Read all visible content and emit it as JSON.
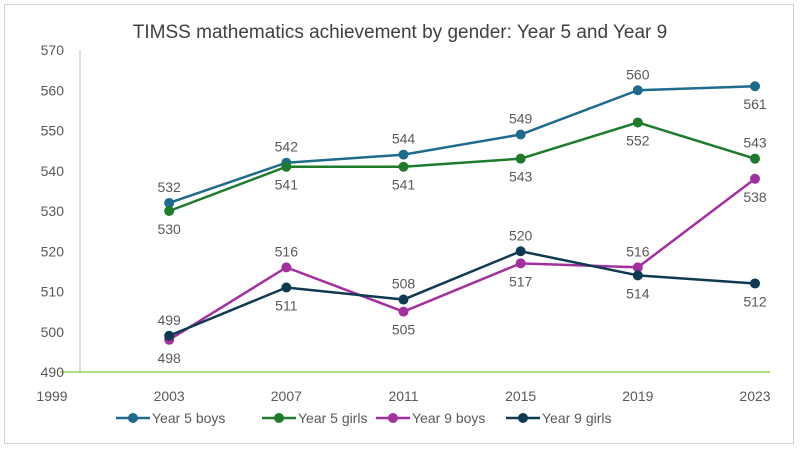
{
  "chart_data": {
    "type": "line",
    "title": "TIMSS mathematics achievement by gender: Year 5 and Year 9",
    "xlabel": "",
    "ylabel": "",
    "x": [
      2003,
      2007,
      2011,
      2015,
      2019,
      2023
    ],
    "xlim": [
      1999,
      2023
    ],
    "xticks": [
      1999,
      2003,
      2007,
      2011,
      2015,
      2019,
      2023
    ],
    "ylim": [
      490,
      570
    ],
    "yticks": [
      490,
      500,
      510,
      520,
      530,
      540,
      550,
      560,
      570
    ],
    "grid": false,
    "legend_position": "bottom",
    "series": [
      {
        "name": "Year 5 boys",
        "color": "#1f6b8e",
        "values": [
          532,
          542,
          544,
          549,
          560,
          561
        ],
        "label_pos": [
          "above",
          "above",
          "above",
          "above",
          "above",
          "below"
        ]
      },
      {
        "name": "Year 5 girls",
        "color": "#1e7b2a",
        "values": [
          530,
          541,
          541,
          543,
          552,
          543
        ],
        "label_pos": [
          "below",
          "below",
          "below",
          "below",
          "below",
          "above"
        ]
      },
      {
        "name": "Year 9 boys",
        "color": "#a3309f",
        "values": [
          498,
          516,
          505,
          517,
          516,
          538
        ],
        "label_pos": [
          "below",
          "above",
          "below",
          "below",
          "above",
          "below"
        ]
      },
      {
        "name": "Year 9 girls",
        "color": "#0e3a52",
        "values": [
          499,
          511,
          508,
          520,
          514,
          512
        ],
        "label_pos": [
          "above",
          "below",
          "above",
          "above",
          "below",
          "below"
        ]
      }
    ]
  }
}
